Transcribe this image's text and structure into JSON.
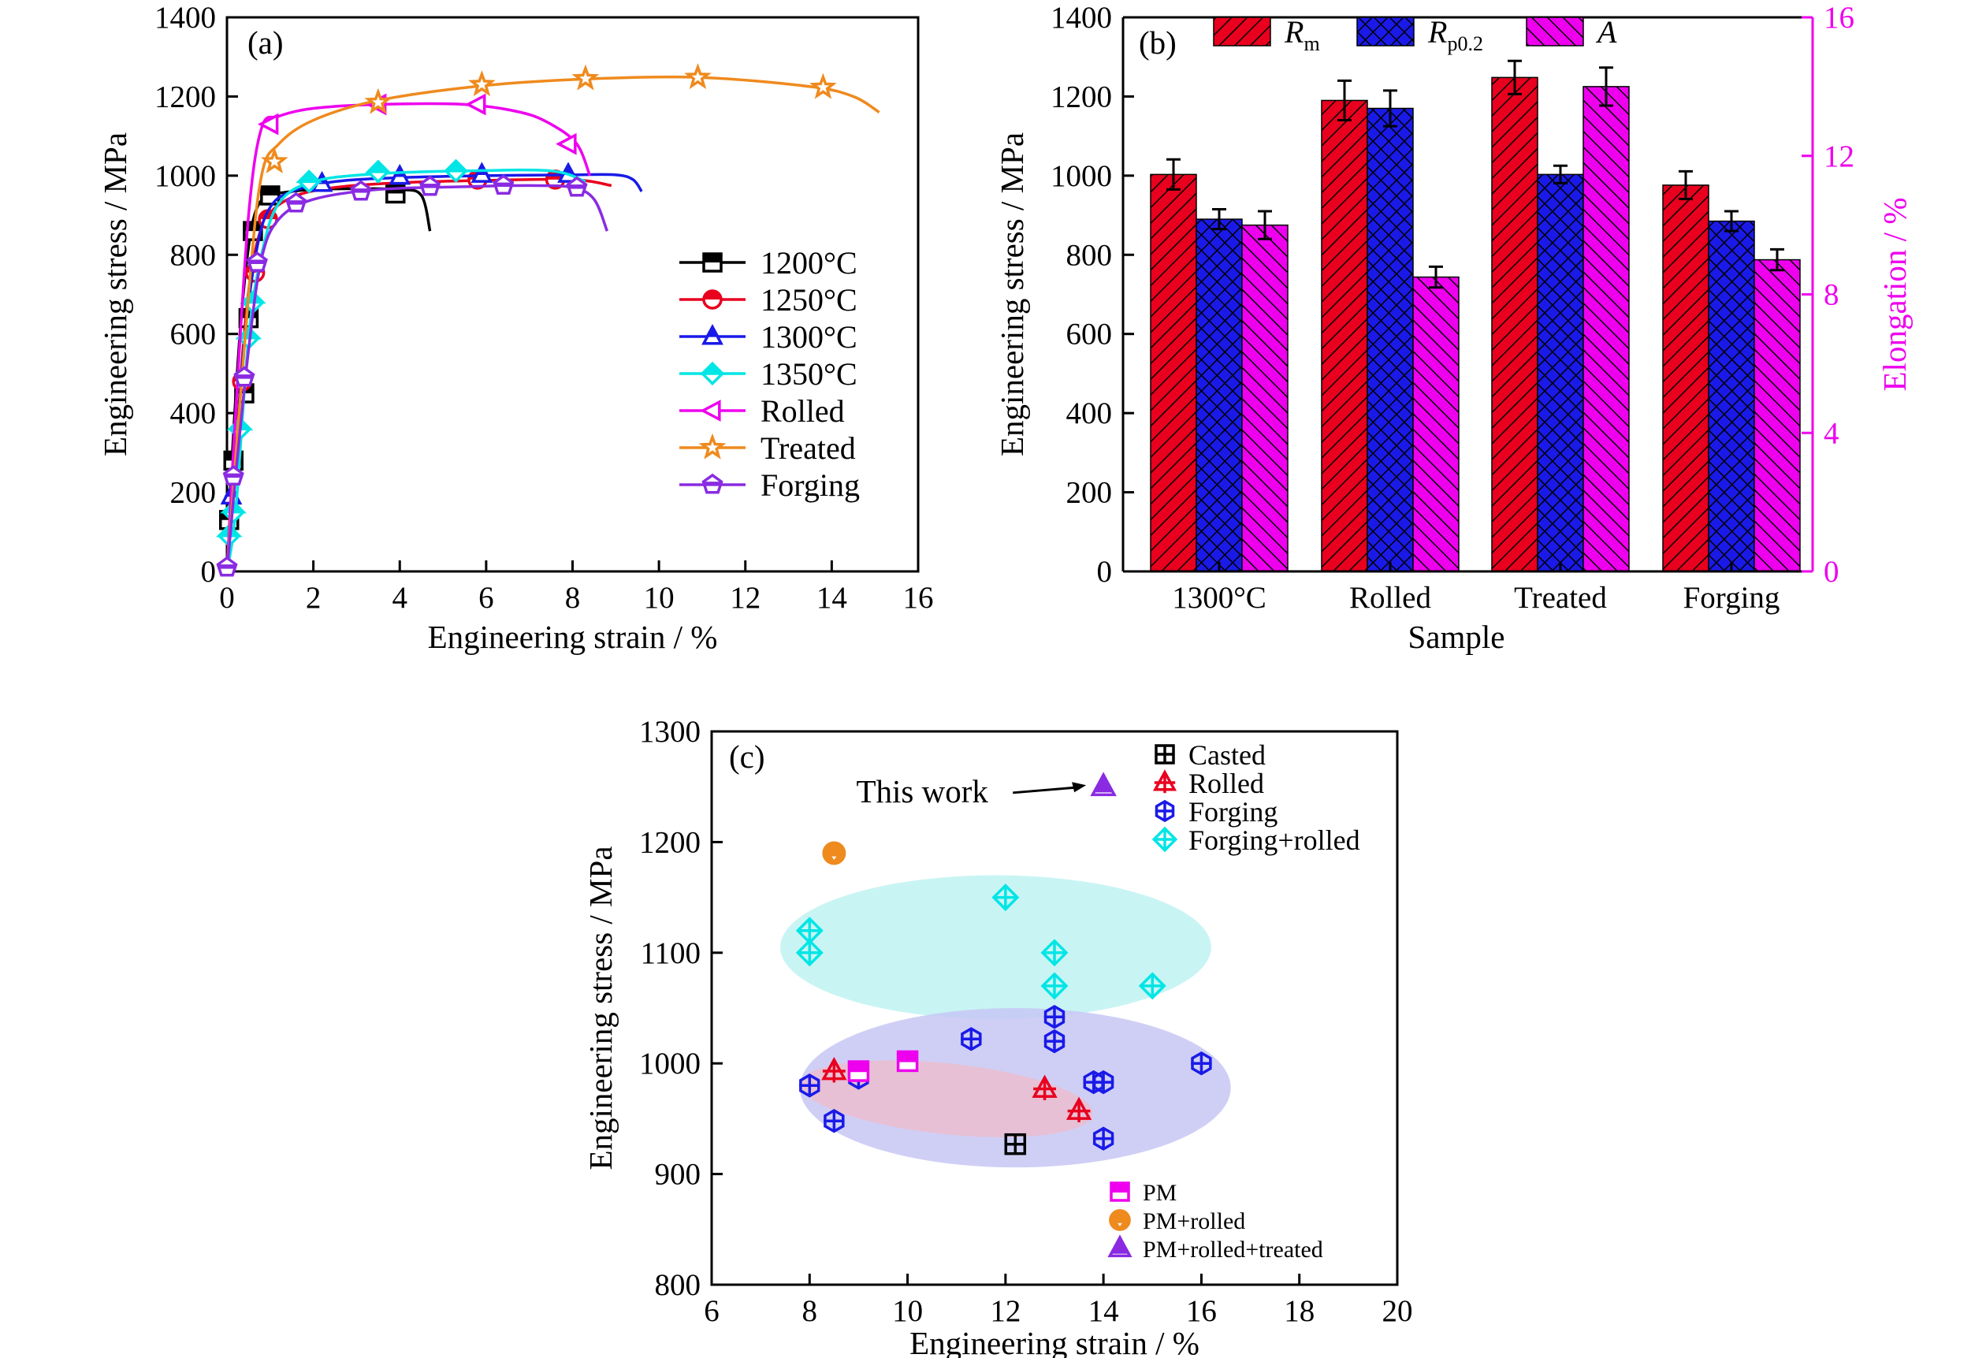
{
  "chart_data": [
    {
      "panel": "(a)",
      "type": "line",
      "xlabel": "Engineering strain / %",
      "ylabel": "Engineering stress / MPa",
      "xlim": [
        0,
        16
      ],
      "ylim": [
        0,
        1400
      ],
      "xticks": [
        0,
        2,
        4,
        6,
        8,
        10,
        12,
        14,
        16
      ],
      "yticks": [
        0,
        200,
        400,
        600,
        800,
        1000,
        1200,
        1400
      ],
      "legend_position": "right",
      "series": [
        {
          "name": "1200°C",
          "color": "#000000",
          "marker": "square",
          "x": [
            0,
            0.1,
            0.3,
            0.5,
            0.7,
            1.0,
            1.5,
            2.0,
            3.0,
            4.0,
            4.5,
            4.7
          ],
          "y": [
            0,
            250,
            600,
            820,
            920,
            950,
            960,
            965,
            967,
            965,
            950,
            860
          ],
          "marker_points": [
            [
              0.05,
              130
            ],
            [
              0.15,
              280
            ],
            [
              0.4,
              450
            ],
            [
              0.5,
              640
            ],
            [
              0.6,
              860
            ],
            [
              1.0,
              950
            ],
            [
              3.9,
              955
            ]
          ]
        },
        {
          "name": "1250°C",
          "color": "#e8001e",
          "marker": "circle",
          "x": [
            0,
            0.2,
            0.4,
            0.6,
            0.9,
            1.5,
            2.5,
            4.0,
            6.0,
            8.0,
            8.9
          ],
          "y": [
            0,
            300,
            600,
            780,
            890,
            945,
            970,
            982,
            988,
            990,
            975
          ],
          "marker_points": [
            [
              0.35,
              480
            ],
            [
              0.65,
              755
            ],
            [
              0.95,
              890
            ],
            [
              5.8,
              990
            ],
            [
              7.6,
              990
            ]
          ]
        },
        {
          "name": "1300°C",
          "color": "#1a1ae8",
          "marker": "triangle",
          "x": [
            0,
            0.15,
            0.4,
            0.7,
            1.0,
            1.5,
            2.5,
            4.0,
            6.0,
            8.0,
            9.0,
            9.4,
            9.6
          ],
          "y": [
            0,
            200,
            580,
            820,
            920,
            960,
            985,
            995,
            1000,
            1002,
            1002,
            990,
            960
          ],
          "marker_points": [
            [
              0.1,
              190
            ],
            [
              2.2,
              980
            ],
            [
              4.0,
              998
            ],
            [
              5.9,
              1003
            ],
            [
              7.9,
              1003
            ]
          ]
        },
        {
          "name": "1350°C",
          "color": "#00e5e5",
          "marker": "diamond",
          "x": [
            0,
            0.2,
            0.5,
            0.8,
            1.2,
            2.0,
            3.5,
            5.5,
            7.5,
            8.3
          ],
          "y": [
            0,
            150,
            590,
            800,
            930,
            985,
            1005,
            1012,
            1012,
            985
          ],
          "marker_points": [
            [
              0.05,
              90
            ],
            [
              0.15,
              150
            ],
            [
              0.3,
              360
            ],
            [
              0.5,
              590
            ],
            [
              0.6,
              680
            ],
            [
              1.9,
              985
            ],
            [
              3.5,
              1010
            ],
            [
              5.3,
              1012
            ]
          ]
        },
        {
          "name": "Rolled",
          "color": "#ee00ee",
          "marker": "left-triangle",
          "x": [
            0,
            0.2,
            0.5,
            0.8,
            1.2,
            2.0,
            3.5,
            5.5,
            6.8,
            7.5,
            8.1,
            8.4
          ],
          "y": [
            0,
            400,
            900,
            1120,
            1150,
            1170,
            1180,
            1180,
            1160,
            1130,
            1080,
            1000
          ],
          "marker_points": [
            [
              1.0,
              1130
            ],
            [
              3.5,
              1180
            ],
            [
              5.8,
              1180
            ],
            [
              7.9,
              1080
            ]
          ]
        },
        {
          "name": "Treated",
          "color": "#ef8a1e",
          "marker": "star",
          "x": [
            0,
            0.5,
            0.8,
            1.2,
            2.0,
            3.5,
            6.0,
            8.5,
            11.0,
            13.5,
            14.5,
            15.1
          ],
          "y": [
            0,
            700,
            1000,
            1080,
            1140,
            1190,
            1228,
            1245,
            1248,
            1225,
            1200,
            1160
          ],
          "marker_points": [
            [
              1.1,
              1035
            ],
            [
              3.5,
              1185
            ],
            [
              5.9,
              1230
            ],
            [
              8.3,
              1245
            ],
            [
              10.9,
              1248
            ],
            [
              13.8,
              1223
            ]
          ]
        },
        {
          "name": "Forging",
          "color": "#8a2be2",
          "marker": "pentagon",
          "x": [
            0,
            0.2,
            0.5,
            0.8,
            1.2,
            2.0,
            3.5,
            5.5,
            7.0,
            8.0,
            8.5,
            8.8
          ],
          "y": [
            0,
            240,
            560,
            790,
            890,
            940,
            965,
            972,
            975,
            970,
            940,
            860
          ],
          "marker_points": [
            [
              0.0,
              10
            ],
            [
              0.15,
              240
            ],
            [
              0.4,
              490
            ],
            [
              0.7,
              780
            ],
            [
              1.6,
              930
            ],
            [
              3.1,
              960
            ],
            [
              4.7,
              972
            ],
            [
              6.4,
              975
            ],
            [
              8.1,
              970
            ]
          ]
        }
      ]
    },
    {
      "panel": "(b)",
      "type": "bar",
      "xlabel": "Sample",
      "ylabel": "Engineering stress / MPa",
      "y2label": "Elongation / %",
      "categories": [
        "1300°C",
        "Rolled",
        "Treated",
        "Forging"
      ],
      "ylim": [
        0,
        1400
      ],
      "y2lim": [
        0,
        16
      ],
      "yticks": [
        0,
        200,
        400,
        600,
        800,
        1000,
        1200,
        1400
      ],
      "y2ticks": [
        0,
        4,
        8,
        12,
        16
      ],
      "legend_position": "top",
      "series": [
        {
          "name": "R",
          "sub": "m",
          "axis": "left",
          "color": "#e8001e",
          "values": [
            1003,
            1190,
            1248,
            976
          ],
          "errors": [
            38,
            50,
            42,
            35
          ]
        },
        {
          "name": "R",
          "sub": "p0.2",
          "axis": "left",
          "color": "#1a1ae8",
          "values": [
            890,
            1170,
            1003,
            885
          ],
          "errors": [
            25,
            45,
            22,
            25
          ]
        },
        {
          "name": "A",
          "sub": "",
          "axis": "right",
          "color": "#ee00ee",
          "values": [
            10.0,
            8.5,
            14.0,
            9.0
          ],
          "errors": [
            0.4,
            0.3,
            0.55,
            0.3
          ]
        }
      ]
    },
    {
      "panel": "(c)",
      "type": "scatter",
      "xlabel": "Engineering strain / %",
      "ylabel": "Engineering stress / MPa",
      "xlim": [
        6,
        20
      ],
      "ylim": [
        800,
        1300
      ],
      "xticks": [
        6,
        8,
        10,
        12,
        14,
        16,
        18,
        20
      ],
      "yticks": [
        800,
        900,
        1000,
        1100,
        1200,
        1300
      ],
      "annotation": "This work",
      "annotation_point": [
        14,
        1250
      ],
      "annotation_text_at": [
        10.3,
        1246
      ],
      "legend_position": "top-right and bottom-right",
      "series": [
        {
          "name": "Casted",
          "color": "#000000",
          "marker": "square-cross",
          "points": [
            [
              12.2,
              927
            ]
          ]
        },
        {
          "name": "Rolled",
          "color": "#e8001e",
          "marker": "triangle-cross",
          "points": [
            [
              8.5,
              993
            ],
            [
              12.8,
              977
            ],
            [
              13.5,
              957
            ]
          ]
        },
        {
          "name": "Forging",
          "color": "#1a1ae8",
          "marker": "hexagon-cross",
          "points": [
            [
              8.0,
              980
            ],
            [
              8.5,
              948
            ],
            [
              9.0,
              987
            ],
            [
              11.3,
              1022
            ],
            [
              13.0,
              1042
            ],
            [
              13.0,
              1020
            ],
            [
              13.8,
              983
            ],
            [
              14.0,
              983
            ],
            [
              14.0,
              932
            ],
            [
              16.0,
              1000
            ]
          ]
        },
        {
          "name": "Forging+rolled",
          "color": "#00e5e5",
          "marker": "diamond-cross",
          "points": [
            [
              8.0,
              1120
            ],
            [
              8.0,
              1100
            ],
            [
              12.0,
              1150
            ],
            [
              13.0,
              1100
            ],
            [
              13.0,
              1070
            ],
            [
              15.0,
              1070
            ]
          ]
        },
        {
          "name": "PM",
          "color": "#ee00ee",
          "marker": "square-half",
          "points": [
            [
              9.0,
              993
            ],
            [
              10.0,
              1002
            ]
          ]
        },
        {
          "name": "PM+rolled",
          "color": "#ef8a1e",
          "marker": "circle-half",
          "points": [
            [
              8.5,
              1190
            ]
          ]
        },
        {
          "name": "PM+rolled+treated",
          "color": "#8a2be2",
          "marker": "triangle-half",
          "points": [
            [
              14.0,
              1250
            ]
          ]
        }
      ],
      "regions": [
        {
          "color": "#bff2f2",
          "center": [
            11.8,
            1105
          ],
          "radii": [
            4.4,
            65
          ]
        },
        {
          "color": "#c7c7f5",
          "center": [
            12.2,
            978
          ],
          "radii": [
            4.4,
            72
          ]
        },
        {
          "color": "#ebbdcf",
          "center": [
            10.8,
            968
          ],
          "radii": [
            3.0,
            32
          ],
          "rotate": 6
        }
      ]
    }
  ]
}
